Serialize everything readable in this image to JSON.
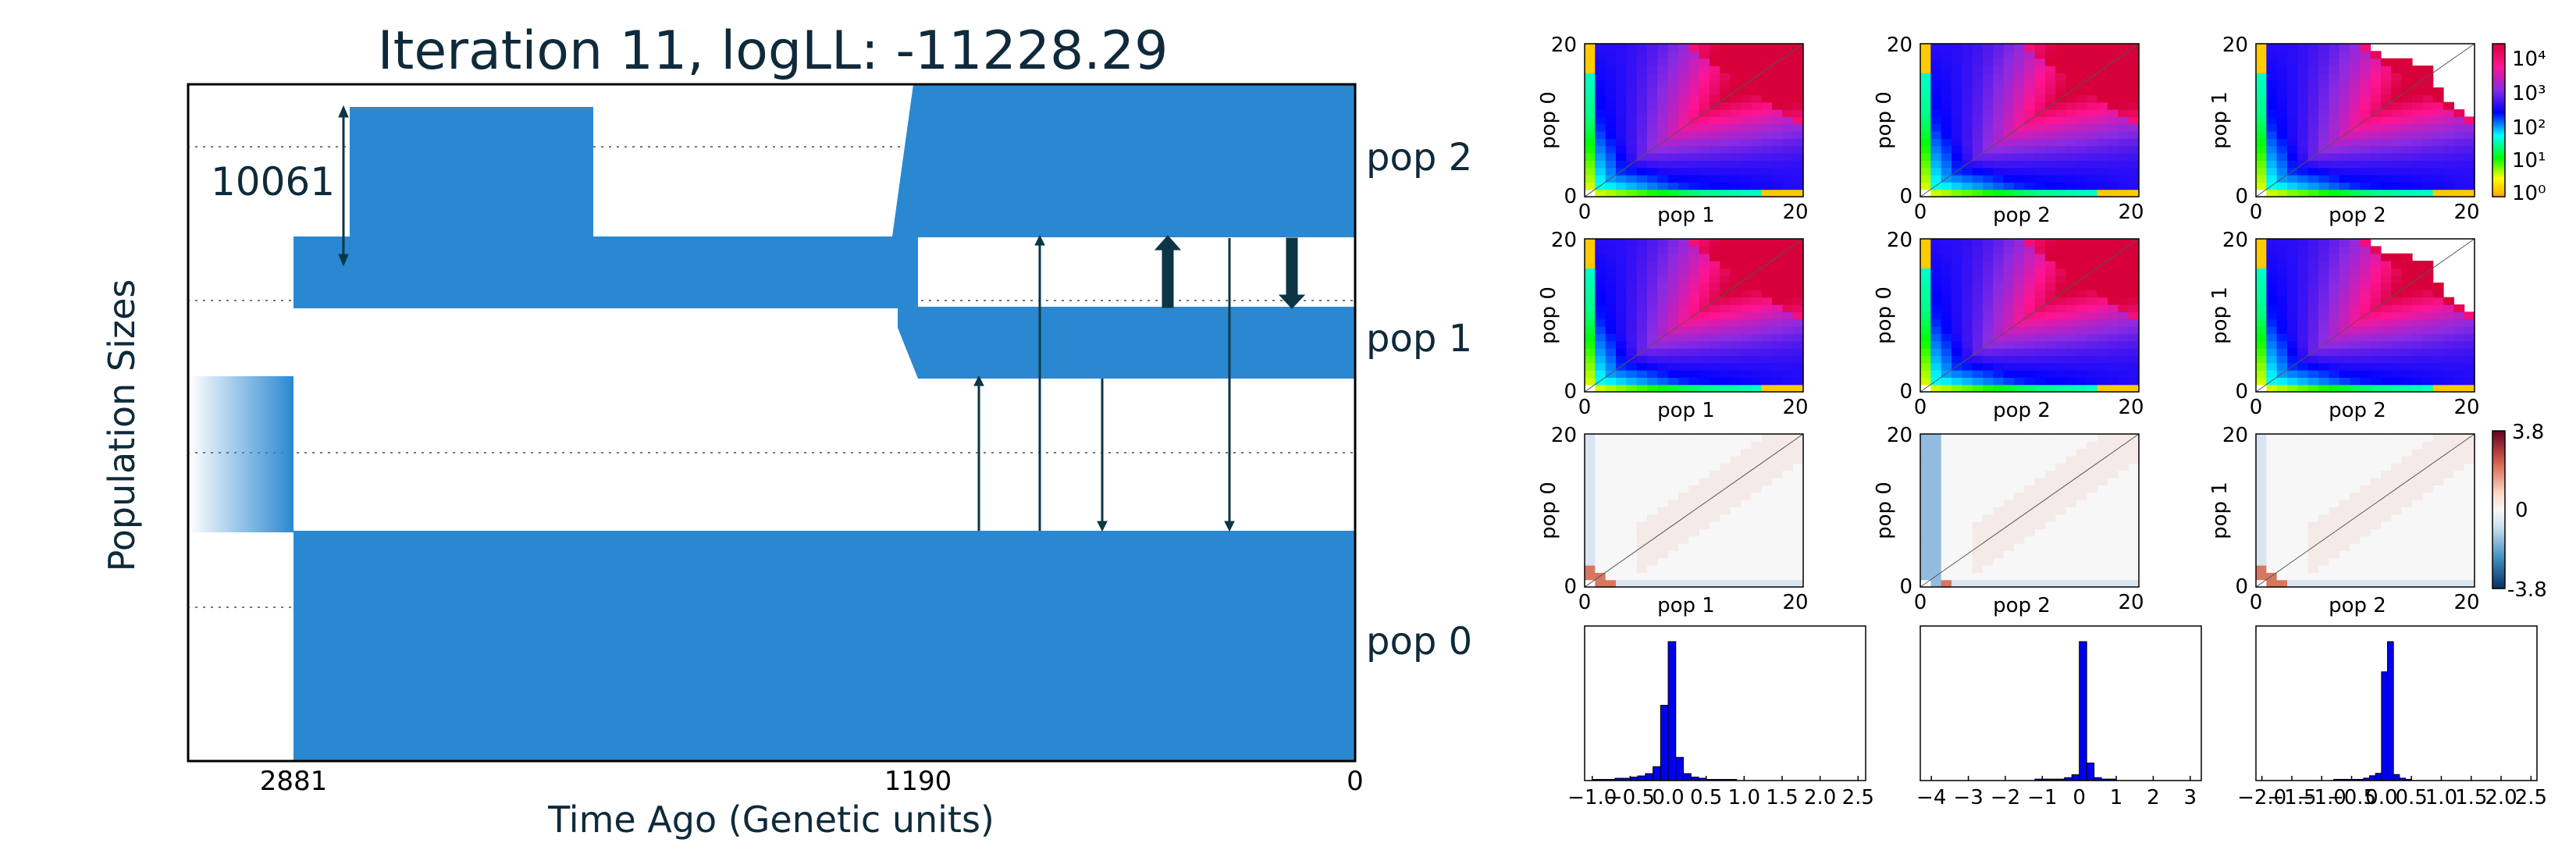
{
  "main_plot": {
    "title": "Iteration 11, logLL:  -11228.29",
    "ylabel": "Population Sizes",
    "xlabel": "Time Ago (Genetic units)",
    "time_ticks": [
      "2881",
      "1190",
      "0"
    ],
    "scale_bar_value": "10061",
    "pop_labels": [
      "pop 0",
      "pop 1",
      "pop 2"
    ],
    "color_fill": "#2a88d1",
    "color_arrow": "#0c3545",
    "chart_data": {
      "type": "demographic-model",
      "title": "Iteration 11, logLL:  -11228.29",
      "xlabel": "Time Ago (Genetic units)",
      "ylabel": "Population Sizes",
      "x_ticks": [
        2881,
        1190,
        0
      ],
      "log_likelihood": -11228.29,
      "iteration": 11,
      "scale_bar": 10061,
      "split_times": [
        2881,
        1190
      ],
      "populations": [
        "pop 0",
        "pop 1",
        "pop 2"
      ]
    }
  },
  "sfs_panels": {
    "colorbar_log_ticks": [
      "10⁴",
      "10³",
      "10²",
      "10¹",
      "10⁰"
    ],
    "colorbar_resid_ticks": [
      "3.8",
      "0",
      "-3.8"
    ],
    "axis_ticks": [
      "0",
      "20"
    ],
    "columns": [
      {
        "xlabel": "pop 1",
        "ylabel": "pop 0"
      },
      {
        "xlabel": "pop 2",
        "ylabel": "pop 0"
      },
      {
        "xlabel": "pop 2",
        "ylabel": "pop 1"
      }
    ]
  },
  "histograms": {
    "chart_data": [
      {
        "type": "bar",
        "x_ticks": [
          "−1.0",
          "−0.5",
          "0.0",
          "0.5",
          "1.0",
          "1.5",
          "2.0",
          "2.5"
        ],
        "xlim": [
          -1.1,
          2.6
        ],
        "bins": [
          -1.0,
          -0.9,
          -0.8,
          -0.7,
          -0.6,
          -0.5,
          -0.4,
          -0.3,
          -0.2,
          -0.1,
          0.0,
          0.1,
          0.2,
          0.3,
          0.4,
          0.5,
          0.6,
          0.7,
          0.8
        ],
        "counts": [
          1,
          1,
          1,
          2,
          2,
          3,
          4,
          6,
          12,
          65,
          120,
          20,
          6,
          3,
          2,
          1,
          1,
          1,
          1
        ]
      },
      {
        "type": "bar",
        "x_ticks": [
          "−4",
          "−3",
          "−2",
          "−1",
          "0",
          "1",
          "2",
          "3"
        ],
        "xlim": [
          -4.3,
          3.3
        ],
        "bins": [
          -1.2,
          -1.0,
          -0.8,
          -0.6,
          -0.4,
          -0.2,
          0.0,
          0.2,
          0.4,
          0.6,
          0.8
        ],
        "counts": [
          1,
          1,
          1,
          1,
          2,
          4,
          95,
          12,
          2,
          1,
          1
        ]
      },
      {
        "type": "bar",
        "x_ticks": [
          "−2.0",
          "−1.5",
          "−1.0",
          "−0.5",
          "0.0",
          "0.5",
          "1.0",
          "1.5",
          "2.0",
          "2.5"
        ],
        "xlim": [
          -2.1,
          2.6
        ],
        "bins": [
          -0.8,
          -0.7,
          -0.6,
          -0.5,
          -0.4,
          -0.3,
          -0.2,
          -0.1,
          0.0,
          0.1,
          0.2,
          0.3,
          0.4
        ],
        "counts": [
          1,
          1,
          1,
          1,
          1,
          2,
          4,
          6,
          90,
          115,
          5,
          2,
          1
        ]
      }
    ]
  }
}
